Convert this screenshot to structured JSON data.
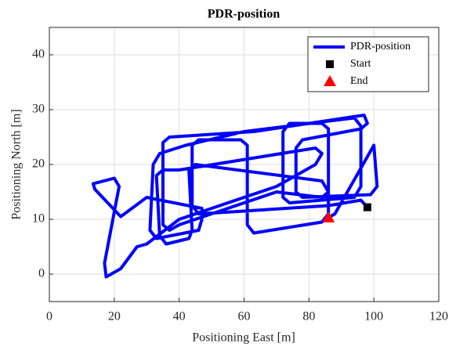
{
  "chart_data": {
    "type": "line",
    "title": "PDR-position",
    "x_label": "Positioning East [m]",
    "y_label": "Positioning North [m]",
    "xlim": [
      0,
      120
    ],
    "ylim": [
      -5,
      45
    ],
    "xticks": [
      0,
      20,
      40,
      60,
      80,
      100,
      120
    ],
    "yticks": [
      0,
      10,
      20,
      30,
      40
    ],
    "grid": true,
    "legend": "northeast",
    "series": [
      {
        "name": "PDR-position",
        "color": "#0000ff",
        "marker": "none",
        "x": [
          98,
          96,
          86,
          60,
          46,
          44,
          44,
          46,
          59,
          61,
          61,
          63,
          84,
          86,
          86,
          84,
          74,
          72,
          72,
          74,
          94,
          96,
          96,
          94,
          60,
          42,
          34,
          32,
          31,
          33,
          46,
          47,
          47,
          30,
          22,
          14,
          13.5,
          20,
          21.5,
          17,
          17.5,
          19,
          22,
          27,
          30,
          40,
          70,
          82,
          84,
          82,
          40,
          35,
          33,
          34,
          36,
          43,
          44,
          43,
          45,
          84,
          86,
          84,
          70,
          40,
          37,
          35,
          35,
          37,
          63,
          97,
          98,
          96,
          78,
          76,
          76,
          78,
          99,
          101,
          100,
          88,
          86
        ],
        "y": [
          12.2,
          13.5,
          12.5,
          11.5,
          11,
          12.5,
          23.5,
          24.5,
          24.5,
          23.5,
          9,
          7.5,
          9.5,
          11,
          26.5,
          27.5,
          27.5,
          26,
          14,
          13,
          14,
          16,
          27,
          28.5,
          26,
          23.5,
          22,
          20,
          8,
          6.5,
          8,
          10,
          12,
          14,
          10.5,
          15.5,
          16.5,
          17.5,
          16,
          2,
          -0.5,
          0,
          1,
          5,
          5.5,
          10,
          16,
          20,
          22,
          23,
          19,
          19,
          18,
          7,
          5.5,
          6.5,
          8,
          19,
          20,
          17,
          15,
          14,
          15,
          9,
          8,
          9,
          24,
          25,
          26,
          29,
          27.5,
          26.5,
          24.5,
          23,
          15,
          14,
          14.5,
          16,
          23.5,
          11,
          10.3
        ]
      },
      {
        "name": "Start",
        "color": "#000000",
        "marker": "square",
        "x": [
          98
        ],
        "y": [
          12.2
        ]
      },
      {
        "name": "End",
        "color": "#ff0000",
        "marker": "triangle",
        "x": [
          86
        ],
        "y": [
          10.3
        ]
      }
    ]
  }
}
